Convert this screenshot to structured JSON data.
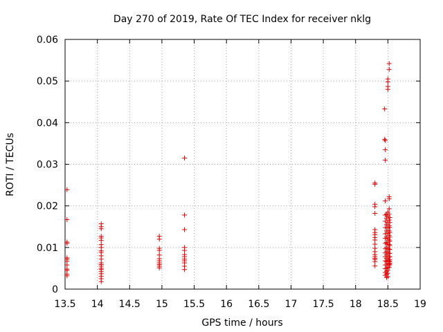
{
  "chart_data": {
    "type": "scatter",
    "title": "Day 270 of 2019, Rate Of TEC Index for receiver nklg",
    "xlabel": "GPS time / hours",
    "ylabel": "ROTI / TECUs",
    "xlim": [
      13.5,
      19
    ],
    "ylim": [
      0,
      0.06
    ],
    "xticks": [
      13.5,
      14,
      14.5,
      15,
      15.5,
      16,
      16.5,
      17,
      17.5,
      18,
      18.5,
      19
    ],
    "xtick_labels": [
      "13.5",
      "14",
      "14.5",
      "15",
      "15.5",
      "16",
      "16.5",
      "17",
      "17.5",
      "18",
      "18.5",
      "19"
    ],
    "yticks": [
      0,
      0.01,
      0.02,
      0.03,
      0.04,
      0.05,
      0.06
    ],
    "ytick_labels": [
      "0",
      "0.01",
      "0.02",
      "0.03",
      "0.04",
      "0.05",
      "0.06"
    ],
    "grid": true,
    "marker": "+",
    "color": "#e00000",
    "series": [
      {
        "name": "ROTI",
        "x": [
          13.53,
          13.53,
          13.53,
          13.53,
          13.53,
          13.53,
          13.53,
          13.53,
          13.53,
          13.53,
          13.53,
          13.53,
          14.06,
          14.06,
          14.06,
          14.06,
          14.06,
          14.06,
          14.06,
          14.06,
          14.06,
          14.06,
          14.06,
          14.06,
          14.06,
          14.06,
          14.06,
          14.06,
          14.06,
          14.06,
          14.06,
          14.06,
          14.06,
          14.06,
          14.96,
          14.96,
          14.96,
          14.96,
          14.96,
          14.96,
          14.96,
          14.96,
          14.96,
          14.96,
          14.96,
          15.35,
          15.35,
          15.35,
          15.35,
          15.35,
          15.35,
          15.35,
          15.35,
          15.35,
          15.35,
          15.35,
          15.35,
          18.3,
          18.3,
          18.3,
          18.3,
          18.3,
          18.3,
          18.3,
          18.3,
          18.3,
          18.3,
          18.3,
          18.3,
          18.3,
          18.3,
          18.3,
          18.3,
          18.3,
          18.3,
          18.3,
          18.45,
          18.45,
          18.46,
          18.46,
          18.46,
          18.46,
          18.46,
          18.46,
          18.46,
          18.46,
          18.46,
          18.46,
          18.46,
          18.46,
          18.46,
          18.46,
          18.46,
          18.46,
          18.46,
          18.46,
          18.48,
          18.48,
          18.48,
          18.48,
          18.48,
          18.48,
          18.48,
          18.48,
          18.48,
          18.48,
          18.48,
          18.48,
          18.48,
          18.48,
          18.48,
          18.48,
          18.5,
          18.5,
          18.5,
          18.5,
          18.5,
          18.5,
          18.5,
          18.5,
          18.5,
          18.5,
          18.5,
          18.5,
          18.5,
          18.5,
          18.5,
          18.5,
          18.5,
          18.5,
          18.5,
          18.5,
          18.52,
          18.52,
          18.52,
          18.52,
          18.52,
          18.52,
          18.52,
          18.52,
          18.52,
          18.52,
          18.52,
          18.52,
          18.52,
          18.52,
          18.52,
          18.52,
          18.52,
          18.52,
          18.53,
          18.53,
          18.53,
          18.53,
          18.53,
          18.53,
          18.53,
          18.53,
          18.53,
          18.53,
          18.53,
          18.53,
          18.53,
          18.53
        ],
        "y": [
          0.0239,
          0.0167,
          0.0113,
          0.011,
          0.0075,
          0.0072,
          0.0067,
          0.0058,
          0.0048,
          0.0045,
          0.0036,
          0.0032,
          0.0157,
          0.015,
          0.0145,
          0.0127,
          0.0123,
          0.0117,
          0.0107,
          0.01,
          0.0092,
          0.0088,
          0.008,
          0.0072,
          0.0063,
          0.0059,
          0.0055,
          0.005,
          0.0047,
          0.0042,
          0.0037,
          0.0031,
          0.0025,
          0.0018,
          0.0127,
          0.012,
          0.0098,
          0.0093,
          0.0082,
          0.0073,
          0.0068,
          0.0063,
          0.0059,
          0.0055,
          0.0051,
          0.0315,
          0.0178,
          0.0143,
          0.01,
          0.0093,
          0.0083,
          0.0078,
          0.0072,
          0.0068,
          0.0063,
          0.0055,
          0.0047,
          0.0255,
          0.0252,
          0.0204,
          0.0198,
          0.0182,
          0.0143,
          0.0136,
          0.0131,
          0.0124,
          0.0118,
          0.0108,
          0.0098,
          0.009,
          0.0083,
          0.0078,
          0.0074,
          0.0071,
          0.0066,
          0.0056,
          0.0433,
          0.036,
          0.0357,
          0.0335,
          0.031,
          0.0212,
          0.0178,
          0.0163,
          0.0148,
          0.0133,
          0.0122,
          0.011,
          0.0097,
          0.0087,
          0.0078,
          0.0068,
          0.0058,
          0.0049,
          0.004,
          0.0033,
          0.018,
          0.017,
          0.0155,
          0.014,
          0.0125,
          0.0112,
          0.01,
          0.009,
          0.0082,
          0.0074,
          0.0066,
          0.0058,
          0.005,
          0.0043,
          0.0036,
          0.0028,
          0.0505,
          0.0498,
          0.0487,
          0.048,
          0.0185,
          0.0175,
          0.016,
          0.0147,
          0.0134,
          0.0121,
          0.0108,
          0.0097,
          0.0087,
          0.0078,
          0.007,
          0.0062,
          0.0053,
          0.0045,
          0.0038,
          0.003,
          0.0542,
          0.0528,
          0.0222,
          0.0217,
          0.0193,
          0.018,
          0.0166,
          0.0152,
          0.014,
          0.0129,
          0.0118,
          0.0107,
          0.0096,
          0.0086,
          0.0077,
          0.0068,
          0.006,
          0.0052,
          0.0172,
          0.016,
          0.0148,
          0.0136,
          0.0125,
          0.0115,
          0.0105,
          0.0095,
          0.0086,
          0.0078,
          0.0071,
          0.0066,
          0.0062,
          0.0058
        ]
      }
    ]
  }
}
